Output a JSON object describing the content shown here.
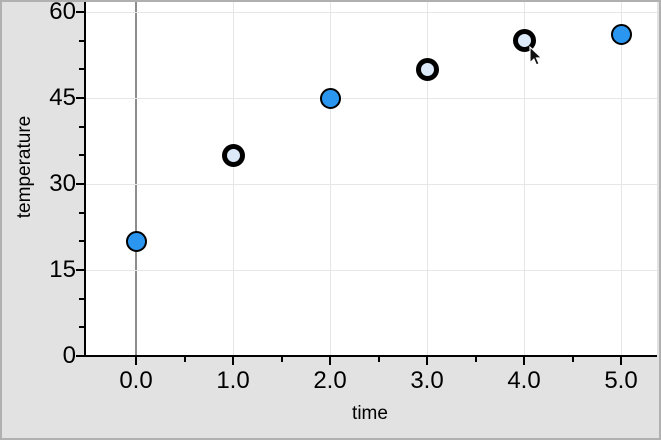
{
  "window": {
    "background_color": "#e2e2e2",
    "border_color": "#b0b0b0",
    "plot_background": "#ffffff"
  },
  "chart_data": {
    "type": "scatter",
    "title": "",
    "xlabel": "time",
    "ylabel": "temperature",
    "points": [
      {
        "x": 0,
        "y": 20,
        "style": "filled"
      },
      {
        "x": 1,
        "y": 35,
        "style": "open"
      },
      {
        "x": 2,
        "y": 45,
        "style": "filled"
      },
      {
        "x": 3,
        "y": 50,
        "style": "open"
      },
      {
        "x": 4,
        "y": 55,
        "style": "open"
      },
      {
        "x": 5,
        "y": 56,
        "style": "filled"
      }
    ],
    "x_ticks": {
      "values": [
        0,
        1,
        2,
        3,
        4,
        5
      ],
      "labels": [
        "0.0",
        "1.0",
        "2.0",
        "3.0",
        "4.0",
        "5.0"
      ],
      "minor_step": 0.5
    },
    "y_ticks": {
      "values": [
        0,
        15,
        30,
        45,
        60
      ],
      "labels": [
        "0",
        "15",
        "30",
        "45",
        "60"
      ],
      "minor_step": 5
    },
    "xlim": [
      -0.53,
      5.37
    ],
    "ylim": [
      0,
      61.8
    ],
    "grid": true,
    "legend": "none",
    "colors": {
      "filled_point_fill": "#2b96f0",
      "open_point_fill": "#dbe9f9",
      "point_stroke": "#000000",
      "axis": "#000000",
      "gridline": "#e6e6e6",
      "zero_line": "#8d8d8d",
      "label_text": "#000000"
    }
  },
  "cursor": {
    "tip_x": 530,
    "tip_y": 47
  }
}
